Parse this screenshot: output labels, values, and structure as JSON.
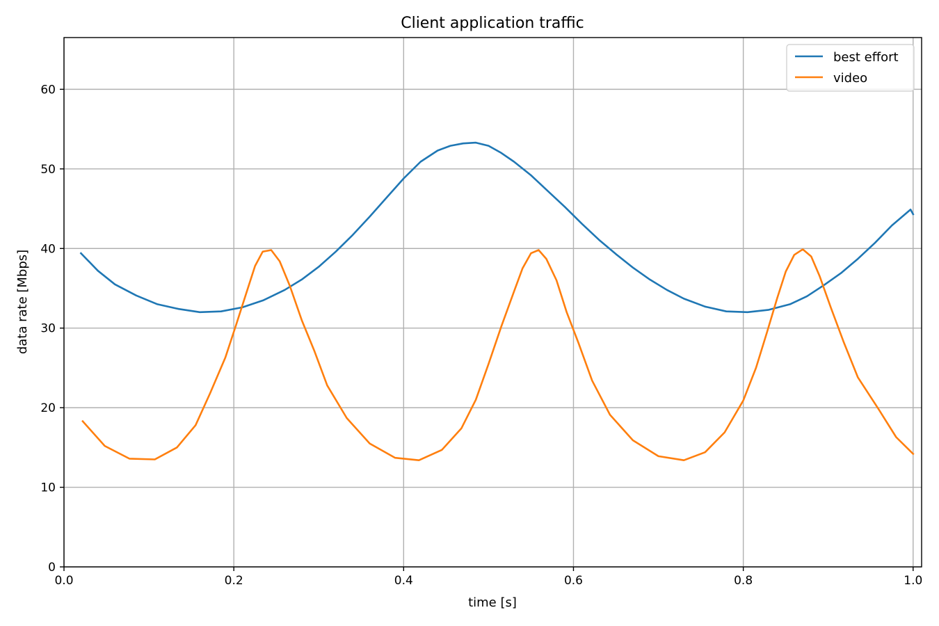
{
  "chart_data": {
    "type": "line",
    "title": "Client application traffic",
    "xlabel": "time [s]",
    "ylabel": "data rate [Mbps]",
    "xlim": [
      0.0,
      1.01
    ],
    "ylim": [
      0,
      66.5
    ],
    "xticks": [
      0.0,
      0.2,
      0.4,
      0.6,
      0.8,
      1.0
    ],
    "xtick_labels": [
      "0.0",
      "0.2",
      "0.4",
      "0.6",
      "0.8",
      "1.0"
    ],
    "yticks": [
      0,
      10,
      20,
      30,
      40,
      50,
      60
    ],
    "ytick_labels": [
      "0",
      "10",
      "20",
      "30",
      "40",
      "50",
      "60"
    ],
    "grid": true,
    "legend": "top-right",
    "series": [
      {
        "name": "best effort",
        "color": "#1f77b4",
        "x": [
          0.02,
          0.04,
          0.06,
          0.085,
          0.11,
          0.135,
          0.16,
          0.185,
          0.21,
          0.235,
          0.26,
          0.28,
          0.3,
          0.32,
          0.34,
          0.36,
          0.38,
          0.4,
          0.42,
          0.44,
          0.455,
          0.47,
          0.485,
          0.5,
          0.515,
          0.53,
          0.55,
          0.57,
          0.59,
          0.61,
          0.63,
          0.65,
          0.67,
          0.69,
          0.71,
          0.73,
          0.755,
          0.78,
          0.805,
          0.83,
          0.855,
          0.875,
          0.895,
          0.915,
          0.935,
          0.955,
          0.975,
          0.997,
          1.0
        ],
        "y": [
          39.4,
          37.2,
          35.5,
          34.1,
          33.0,
          32.4,
          32.0,
          32.1,
          32.6,
          33.5,
          34.8,
          36.1,
          37.7,
          39.6,
          41.7,
          44.0,
          46.4,
          48.8,
          50.9,
          52.3,
          52.9,
          53.2,
          53.3,
          52.9,
          52.0,
          50.9,
          49.2,
          47.2,
          45.2,
          43.1,
          41.1,
          39.3,
          37.6,
          36.1,
          34.8,
          33.7,
          32.7,
          32.1,
          32.0,
          32.3,
          33.0,
          34.0,
          35.4,
          36.9,
          38.7,
          40.7,
          42.9,
          44.9,
          44.3
        ]
      },
      {
        "name": "video",
        "color": "#ff7f0e",
        "x": [
          0.022,
          0.048,
          0.077,
          0.107,
          0.133,
          0.155,
          0.172,
          0.19,
          0.203,
          0.215,
          0.225,
          0.234,
          0.244,
          0.254,
          0.266,
          0.28,
          0.295,
          0.31,
          0.333,
          0.36,
          0.39,
          0.418,
          0.445,
          0.468,
          0.485,
          0.5,
          0.515,
          0.53,
          0.54,
          0.55,
          0.559,
          0.568,
          0.58,
          0.592,
          0.606,
          0.622,
          0.643,
          0.67,
          0.7,
          0.73,
          0.755,
          0.778,
          0.8,
          0.815,
          0.828,
          0.84,
          0.85,
          0.86,
          0.87,
          0.88,
          0.89,
          0.903,
          0.918,
          0.935,
          0.96,
          0.98,
          1.0
        ],
        "y": [
          18.3,
          15.2,
          13.6,
          13.5,
          15.0,
          17.8,
          21.8,
          26.3,
          30.5,
          34.5,
          37.8,
          39.6,
          39.8,
          38.4,
          35.3,
          31.0,
          27.1,
          22.8,
          18.7,
          15.5,
          13.7,
          13.4,
          14.7,
          17.4,
          21.0,
          25.5,
          30.2,
          34.6,
          37.5,
          39.4,
          39.8,
          38.7,
          36.0,
          32.0,
          28.1,
          23.4,
          19.1,
          15.9,
          13.9,
          13.4,
          14.4,
          16.9,
          20.9,
          25.0,
          29.5,
          33.8,
          37.1,
          39.2,
          39.9,
          39.0,
          36.5,
          32.6,
          28.3,
          23.8,
          19.7,
          16.3,
          14.2
        ]
      }
    ]
  }
}
